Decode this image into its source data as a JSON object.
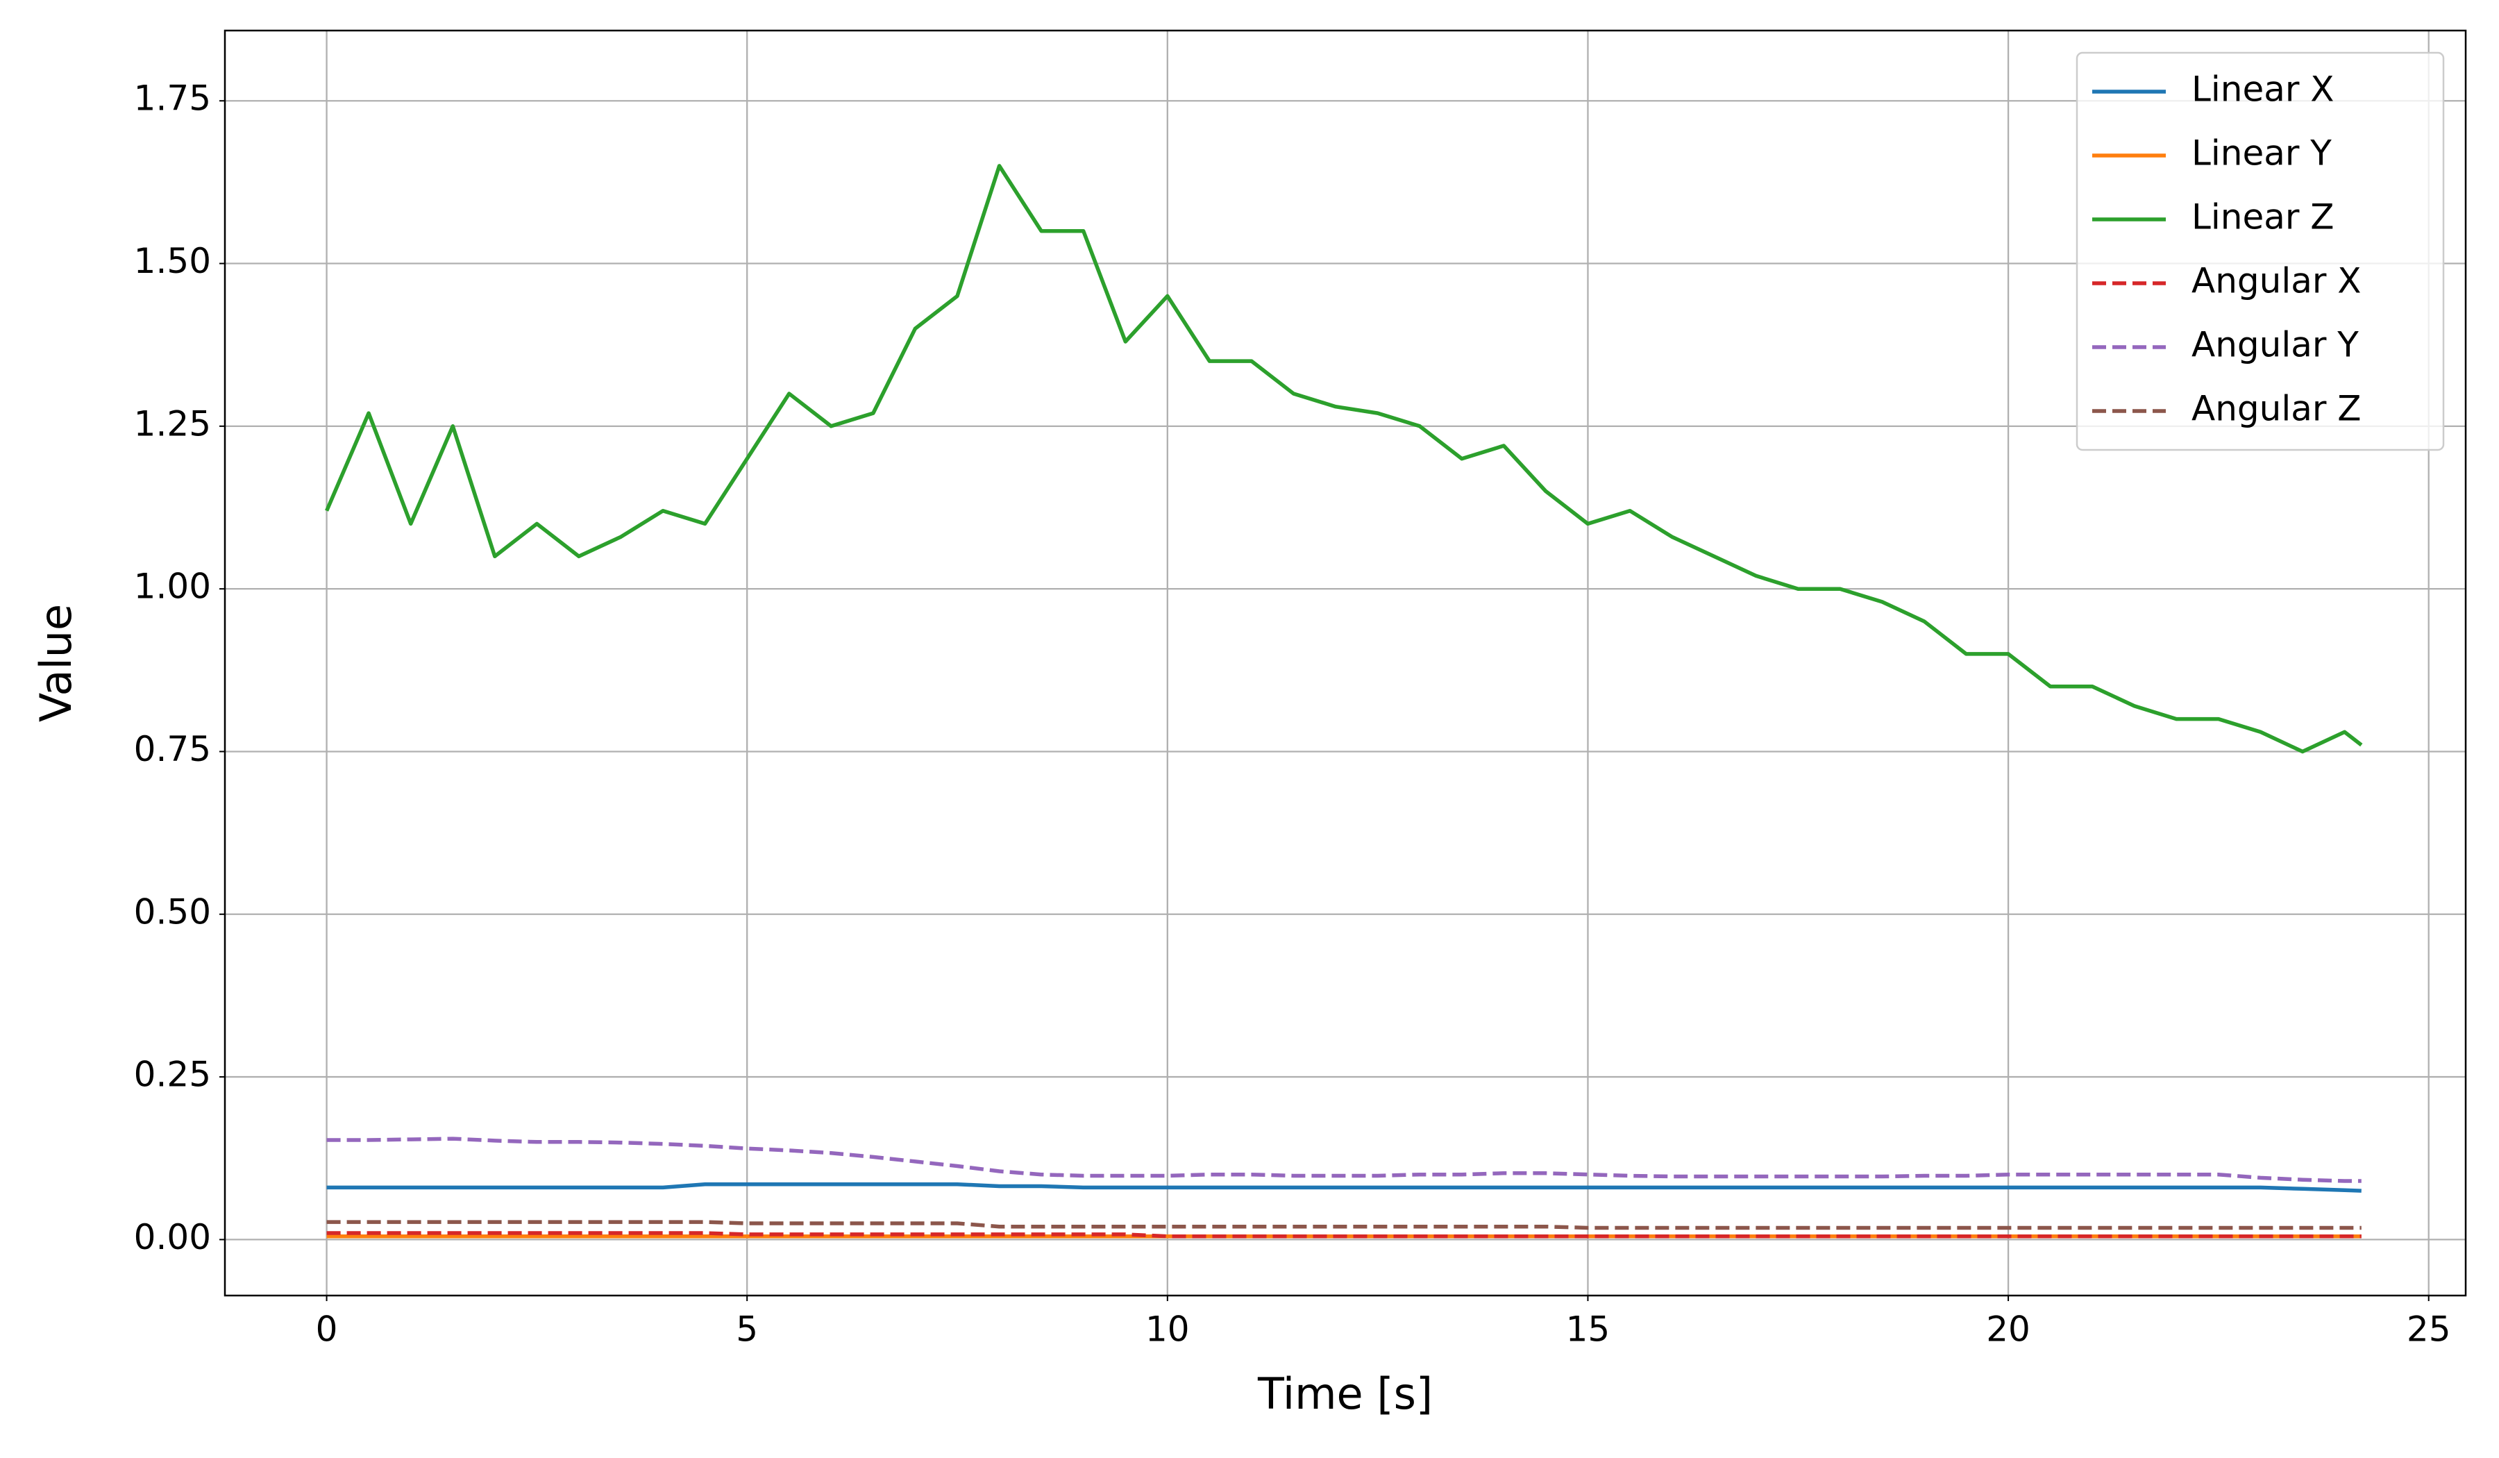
{
  "chart_data": {
    "type": "line",
    "xlabel": "Time [s]",
    "ylabel": "Value",
    "x": [
      0,
      0.5,
      1,
      1.5,
      2,
      2.5,
      3,
      3.5,
      4,
      4.5,
      5,
      5.5,
      6,
      6.5,
      7,
      7.5,
      8,
      8.5,
      9,
      9.5,
      10,
      10.5,
      11,
      11.5,
      12,
      12.5,
      13,
      13.5,
      14,
      14.5,
      15,
      15.5,
      16,
      16.5,
      17,
      17.5,
      18,
      18.5,
      19,
      19.5,
      20,
      20.5,
      21,
      21.5,
      22,
      22.5,
      23,
      23.5,
      24,
      24.2
    ],
    "series": [
      {
        "name": "Linear X",
        "color": "#1f77b4",
        "linestyle": "solid",
        "values": [
          0.08,
          0.08,
          0.08,
          0.08,
          0.08,
          0.08,
          0.08,
          0.08,
          0.08,
          0.085,
          0.085,
          0.085,
          0.085,
          0.085,
          0.085,
          0.085,
          0.082,
          0.082,
          0.08,
          0.08,
          0.08,
          0.08,
          0.08,
          0.08,
          0.08,
          0.08,
          0.08,
          0.08,
          0.08,
          0.08,
          0.08,
          0.08,
          0.08,
          0.08,
          0.08,
          0.08,
          0.08,
          0.08,
          0.08,
          0.08,
          0.08,
          0.08,
          0.08,
          0.08,
          0.08,
          0.08,
          0.08,
          0.078,
          0.076,
          0.075
        ]
      },
      {
        "name": "Linear Y",
        "color": "#ff7f0e",
        "linestyle": "solid",
        "values": [
          0.005,
          0.005,
          0.005,
          0.005,
          0.005,
          0.005,
          0.005,
          0.005,
          0.005,
          0.005,
          0.005,
          0.005,
          0.005,
          0.005,
          0.005,
          0.005,
          0.005,
          0.005,
          0.005,
          0.005,
          0.005,
          0.005,
          0.005,
          0.005,
          0.005,
          0.005,
          0.005,
          0.005,
          0.005,
          0.005,
          0.005,
          0.005,
          0.005,
          0.005,
          0.005,
          0.005,
          0.005,
          0.005,
          0.005,
          0.005,
          0.005,
          0.005,
          0.005,
          0.005,
          0.005,
          0.005,
          0.005,
          0.005,
          0.005,
          0.005
        ]
      },
      {
        "name": "Linear Z",
        "color": "#2ca02c",
        "linestyle": "solid",
        "values": [
          1.12,
          1.27,
          1.1,
          1.25,
          1.05,
          1.1,
          1.05,
          1.08,
          1.12,
          1.1,
          1.2,
          1.3,
          1.25,
          1.27,
          1.4,
          1.45,
          1.65,
          1.55,
          1.55,
          1.38,
          1.45,
          1.35,
          1.35,
          1.3,
          1.28,
          1.27,
          1.25,
          1.2,
          1.22,
          1.15,
          1.1,
          1.12,
          1.08,
          1.05,
          1.02,
          1.0,
          1.0,
          0.98,
          0.95,
          0.9,
          0.9,
          0.85,
          0.85,
          0.82,
          0.8,
          0.8,
          0.78,
          0.75,
          0.78,
          0.76
        ]
      },
      {
        "name": "Angular X",
        "color": "#d62728",
        "linestyle": "dashed",
        "values": [
          0.01,
          0.01,
          0.01,
          0.01,
          0.01,
          0.01,
          0.01,
          0.01,
          0.01,
          0.01,
          0.008,
          0.008,
          0.008,
          0.008,
          0.008,
          0.008,
          0.008,
          0.008,
          0.008,
          0.008,
          0.005,
          0.005,
          0.005,
          0.005,
          0.005,
          0.005,
          0.005,
          0.005,
          0.005,
          0.005,
          0.005,
          0.005,
          0.005,
          0.005,
          0.005,
          0.005,
          0.005,
          0.005,
          0.005,
          0.005,
          0.005,
          0.005,
          0.005,
          0.005,
          0.005,
          0.005,
          0.005,
          0.005,
          0.005,
          0.005
        ]
      },
      {
        "name": "Angular Y",
        "color": "#9467bd",
        "linestyle": "dashed",
        "values": [
          0.153,
          0.153,
          0.154,
          0.155,
          0.152,
          0.15,
          0.15,
          0.149,
          0.147,
          0.144,
          0.14,
          0.137,
          0.133,
          0.127,
          0.12,
          0.113,
          0.105,
          0.1,
          0.098,
          0.098,
          0.098,
          0.1,
          0.1,
          0.098,
          0.098,
          0.098,
          0.1,
          0.1,
          0.102,
          0.102,
          0.1,
          0.098,
          0.097,
          0.097,
          0.097,
          0.097,
          0.097,
          0.097,
          0.098,
          0.098,
          0.1,
          0.1,
          0.1,
          0.1,
          0.1,
          0.1,
          0.095,
          0.092,
          0.09,
          0.09
        ]
      },
      {
        "name": "Angular Z",
        "color": "#8c564b",
        "linestyle": "dashed",
        "values": [
          0.027,
          0.027,
          0.027,
          0.027,
          0.027,
          0.027,
          0.027,
          0.027,
          0.027,
          0.027,
          0.025,
          0.025,
          0.025,
          0.025,
          0.025,
          0.025,
          0.02,
          0.02,
          0.02,
          0.02,
          0.02,
          0.02,
          0.02,
          0.02,
          0.02,
          0.02,
          0.02,
          0.02,
          0.02,
          0.02,
          0.018,
          0.018,
          0.018,
          0.018,
          0.018,
          0.018,
          0.018,
          0.018,
          0.018,
          0.018,
          0.018,
          0.018,
          0.018,
          0.018,
          0.018,
          0.018,
          0.018,
          0.018,
          0.018,
          0.018
        ]
      }
    ],
    "xlim": [
      -1.21,
      25.44
    ],
    "xticks": [
      0,
      5,
      10,
      15,
      20,
      25
    ],
    "ylim": [
      -0.086,
      1.858
    ],
    "yticks": [
      {
        "value": 0,
        "label": "0.00"
      },
      {
        "value": 0.25,
        "label": "0.25"
      },
      {
        "value": 0.5,
        "label": "0.50"
      },
      {
        "value": 0.75,
        "label": "0.75"
      },
      {
        "value": 1,
        "label": "1.00"
      },
      {
        "value": 1.25,
        "label": "1.25"
      },
      {
        "value": 1.5,
        "label": "1.50"
      },
      {
        "value": 1.75,
        "label": "1.75"
      }
    ],
    "grid": true,
    "legend": "upper right"
  }
}
